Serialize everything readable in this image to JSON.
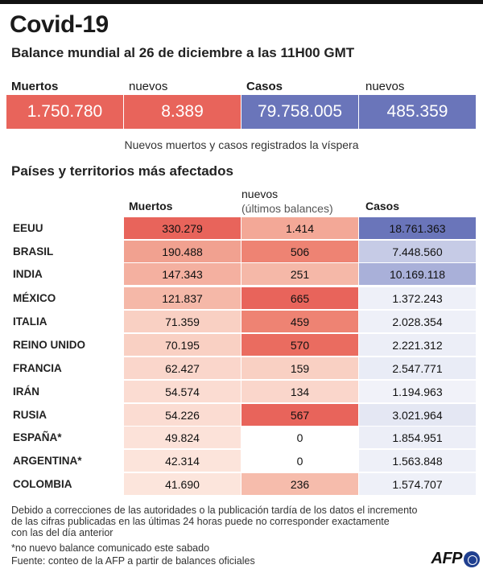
{
  "title": "Covid-19",
  "subtitle": "Balance mundial al 26 de diciembre a las 11H00 GMT",
  "summary": {
    "deaths_label": "Muertos",
    "deaths_value": "1.750.780",
    "new_deaths_label": "nuevos",
    "new_deaths_value": "8.389",
    "cases_label": "Casos",
    "cases_value": "79.758.005",
    "new_cases_label": "nuevos",
    "new_cases_value": "485.359",
    "note": "Nuevos muertos y casos registrados la víspera"
  },
  "table": {
    "section_title": "Países y territorios más afectados",
    "col_deaths": "Muertos",
    "col_new_line1": "nuevos",
    "col_new_line2": "(últimos balances)",
    "col_cases": "Casos",
    "rows": [
      {
        "country": "EEUU",
        "deaths": "330.279",
        "new": "1.414",
        "cases": "18.761.363"
      },
      {
        "country": "BRASIL",
        "deaths": "190.488",
        "new": "506",
        "cases": "7.448.560"
      },
      {
        "country": "INDIA",
        "deaths": "147.343",
        "new": "251",
        "cases": "10.169.118"
      },
      {
        "country": "MÉXICO",
        "deaths": "121.837",
        "new": "665",
        "cases": "1.372.243"
      },
      {
        "country": "ITALIA",
        "deaths": "71.359",
        "new": "459",
        "cases": "2.028.354"
      },
      {
        "country": "REINO UNIDO",
        "deaths": "70.195",
        "new": "570",
        "cases": "2.221.312"
      },
      {
        "country": "FRANCIA",
        "deaths": "62.427",
        "new": "159",
        "cases": "2.547.771"
      },
      {
        "country": "IRÁN",
        "deaths": "54.574",
        "new": "134",
        "cases": "1.194.963"
      },
      {
        "country": "RUSIA",
        "deaths": "54.226",
        "new": "567",
        "cases": "3.021.964"
      },
      {
        "country": "ESPAÑA*",
        "deaths": "49.824",
        "new": "0",
        "cases": "1.854.951"
      },
      {
        "country": "ARGENTINA*",
        "deaths": "42.314",
        "new": "0",
        "cases": "1.563.848"
      },
      {
        "country": "COLOMBIA",
        "deaths": "41.690",
        "new": "236",
        "cases": "1.574.707"
      }
    ]
  },
  "footer": {
    "note_line1": "Debido a correcciones de las autoridades o la publicación tardía de los datos  el incremento",
    "note_line2": "de las cifras publicadas en las últimas 24 horas puede no corresponder exactamente",
    "note_line3": "con las del día anterior",
    "asterisk_note": "*no nuevo balance comunicado este sabado",
    "source": "Fuente: conteo de la AFP a partir de balances oficiales",
    "logo": "AFP"
  },
  "colors": {
    "deaths_box": "#e8645b",
    "cases_box": "#6a75ba",
    "deaths_scale": [
      "#e8645b",
      "#f1a190",
      "#f5b8a8",
      "#f8c9bb",
      "#fbe2d9"
    ],
    "cases_scale": [
      "#6a75ba",
      "#c6cbe6",
      "#d1d5ea",
      "#eef0f8"
    ]
  }
}
